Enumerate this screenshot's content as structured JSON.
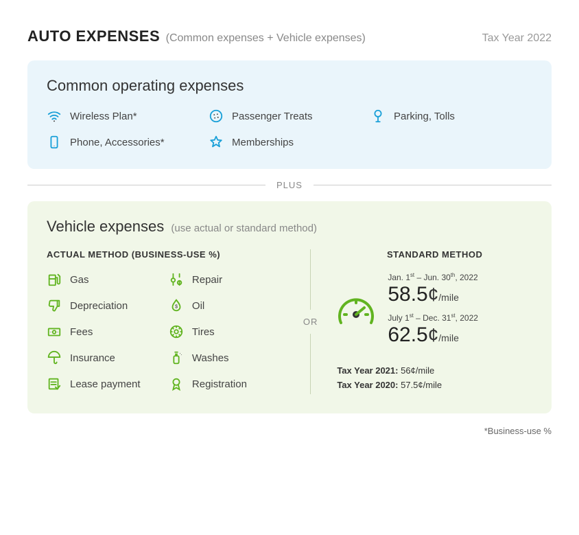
{
  "header": {
    "title": "AUTO EXPENSES",
    "subtitle": "(Common expenses + Vehicle expenses)",
    "tax_year": "Tax Year 2022"
  },
  "common": {
    "panel_title": "Common operating expenses",
    "panel_bg": "#eaf5fb",
    "icon_color": "#1aa0d8",
    "items": [
      {
        "label": "Wireless Plan*",
        "icon": "wifi"
      },
      {
        "label": "Passenger Treats",
        "icon": "cookie"
      },
      {
        "label": "Parking, Tolls",
        "icon": "parking-meter"
      },
      {
        "label": "Phone, Accessories*",
        "icon": "phone"
      },
      {
        "label": "Memberships",
        "icon": "star"
      }
    ]
  },
  "divider_text": "PLUS",
  "vehicle": {
    "panel_title": "Vehicle expenses",
    "panel_title_sub": "(use actual or standard method)",
    "panel_bg": "#f1f7e8",
    "icon_color": "#61b420",
    "or_text": "OR",
    "actual": {
      "header": "ACTUAL METHOD (BUSINESS-USE %)",
      "items": [
        {
          "label": "Gas",
          "icon": "gas"
        },
        {
          "label": "Repair",
          "icon": "wrench"
        },
        {
          "label": "Depreciation",
          "icon": "thumbdown"
        },
        {
          "label": "Oil",
          "icon": "droplet"
        },
        {
          "label": "Fees",
          "icon": "money-bill"
        },
        {
          "label": "Tires",
          "icon": "tire"
        },
        {
          "label": "Insurance",
          "icon": "umbrella"
        },
        {
          "label": "Washes",
          "icon": "spray"
        },
        {
          "label": "Lease payment",
          "icon": "lease"
        },
        {
          "label": "Registration",
          "icon": "ribbon"
        }
      ]
    },
    "standard": {
      "header": "STANDARD METHOD",
      "gauge_color": "#61b420",
      "rates": [
        {
          "period_html": "Jan. 1<sup>st</sup> – Jun. 30<sup>th</sup>, 2022",
          "value": "58.5",
          "cents": "¢",
          "unit": "/mile"
        },
        {
          "period_html": "July 1<sup>st</sup> – Dec. 31<sup>st</sup>, 2022",
          "value": "62.5",
          "cents": "¢",
          "unit": "/mile"
        }
      ],
      "historical": [
        {
          "label": "Tax Year 2021:",
          "value": "56¢/mile"
        },
        {
          "label": "Tax Year 2020:",
          "value": "57.5¢/mile"
        }
      ]
    }
  },
  "footnote": "*Business-use %"
}
